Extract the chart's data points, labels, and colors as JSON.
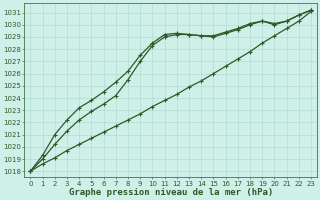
{
  "xlabel": "Graphe pression niveau de la mer (hPa)",
  "x_ticks": [
    0,
    1,
    2,
    3,
    4,
    5,
    6,
    7,
    8,
    9,
    10,
    11,
    12,
    13,
    14,
    15,
    16,
    17,
    18,
    19,
    20,
    21,
    22,
    23
  ],
  "y_ticks": [
    1018,
    1019,
    1020,
    1021,
    1022,
    1023,
    1024,
    1025,
    1026,
    1027,
    1028,
    1029,
    1030,
    1031
  ],
  "ylim": [
    1017.5,
    1031.8
  ],
  "xlim": [
    -0.5,
    23.5
  ],
  "bg_color": "#cff0e8",
  "grid_color": "#a8d8cc",
  "line_color": "#2d5a27",
  "line1_y": [
    1018.0,
    1018.6,
    1019.1,
    1019.7,
    1020.2,
    1020.7,
    1021.2,
    1021.7,
    1022.2,
    1022.7,
    1023.3,
    1023.8,
    1024.3,
    1024.9,
    1025.4,
    1026.0,
    1026.6,
    1027.2,
    1027.8,
    1028.5,
    1029.1,
    1029.7,
    1030.3,
    1031.1
  ],
  "line2_y": [
    1018.0,
    1019.0,
    1020.2,
    1021.3,
    1022.2,
    1022.9,
    1023.5,
    1024.2,
    1025.5,
    1027.0,
    1028.3,
    1029.0,
    1029.2,
    1029.2,
    1029.1,
    1029.1,
    1029.4,
    1029.7,
    1030.1,
    1030.3,
    1030.0,
    1030.3,
    1030.8,
    1031.2
  ],
  "line3_y": [
    1018.0,
    1019.3,
    1021.0,
    1022.2,
    1023.2,
    1023.8,
    1024.5,
    1025.3,
    1026.2,
    1027.5,
    1028.5,
    1029.2,
    1029.3,
    1029.2,
    1029.1,
    1029.0,
    1029.3,
    1029.6,
    1030.0,
    1030.3,
    1030.1,
    1030.3,
    1030.8,
    1031.2
  ],
  "marker": "+",
  "markersize": 3.5,
  "linewidth": 0.9,
  "tick_fontsize": 5.0,
  "xlabel_fontsize": 6.5,
  "tick_color": "#2d5a27",
  "axis_color": "#2d5a27"
}
